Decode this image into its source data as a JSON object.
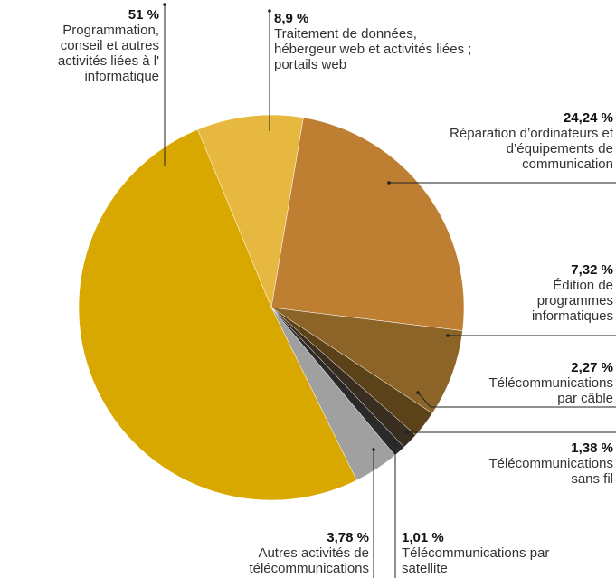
{
  "chart_data": {
    "type": "pie",
    "categories": [
      "Traitement de données, hébergeur web et activités liées ; portails web",
      "Réparation d’ordinateurs et d’équipements de communication",
      "Édition de programmes informatiques",
      "Télécommunications par câble",
      "Télécommunications sans fil",
      "Télécommunications par satellite",
      "Autres activités de télécommunications",
      "Programmation, conseil et autres activités liées à l' informatique"
    ],
    "values": [
      8.9,
      24.24,
      7.32,
      2.27,
      1.38,
      1.01,
      3.78,
      51
    ],
    "value_labels": [
      "8,9 %",
      "24,24 %",
      "7,32 %",
      "2,27 %",
      "1,38 %",
      "1,01 %",
      "3,78 %",
      "51 %"
    ],
    "colors": [
      "#e6b840",
      "#bf7f33",
      "#8c6428",
      "#5c4218",
      "#3a2e20",
      "#2a2a2a",
      "#a0a0a0",
      "#d9a800"
    ]
  }
}
